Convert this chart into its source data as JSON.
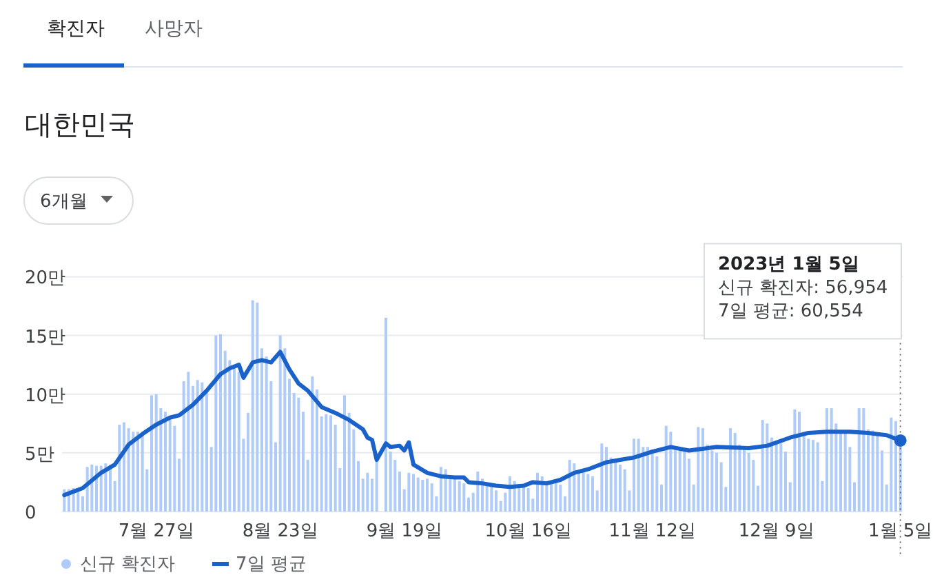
{
  "chart_data": {
    "type": "bar",
    "title": "대한민국",
    "x": [
      "2022-07-07",
      "2022-07-08",
      "2022-07-09",
      "2022-07-10",
      "2022-07-11",
      "2022-07-12",
      "2022-07-13",
      "2022-07-14",
      "2022-07-15",
      "2022-07-16",
      "2022-07-17",
      "2022-07-18",
      "2022-07-19",
      "2022-07-20",
      "2022-07-21",
      "2022-07-22",
      "2022-07-23",
      "2022-07-24",
      "2022-07-25",
      "2022-07-26",
      "2022-07-27",
      "2022-07-28",
      "2022-07-29",
      "2022-07-30",
      "2022-07-31",
      "2022-08-01",
      "2022-08-02",
      "2022-08-03",
      "2022-08-04",
      "2022-08-05",
      "2022-08-06",
      "2022-08-07",
      "2022-08-08",
      "2022-08-09",
      "2022-08-10",
      "2022-08-11",
      "2022-08-12",
      "2022-08-13",
      "2022-08-14",
      "2022-08-15",
      "2022-08-16",
      "2022-08-17",
      "2022-08-18",
      "2022-08-19",
      "2022-08-20",
      "2022-08-21",
      "2022-08-22",
      "2022-08-23",
      "2022-08-24",
      "2022-08-25",
      "2022-08-26",
      "2022-08-27",
      "2022-08-28",
      "2022-08-29",
      "2022-08-30",
      "2022-08-31",
      "2022-09-01",
      "2022-09-02",
      "2022-09-03",
      "2022-09-04",
      "2022-09-05",
      "2022-09-06",
      "2022-09-07",
      "2022-09-08",
      "2022-09-09",
      "2022-09-10",
      "2022-09-11",
      "2022-09-12",
      "2022-09-13",
      "2022-09-14",
      "2022-09-15",
      "2022-09-16",
      "2022-09-17",
      "2022-09-18",
      "2022-09-19",
      "2022-09-20",
      "2022-09-21",
      "2022-09-22",
      "2022-09-23",
      "2022-09-24",
      "2022-09-25",
      "2022-09-26",
      "2022-09-27",
      "2022-09-28",
      "2022-09-29",
      "2022-09-30",
      "2022-10-01",
      "2022-10-02",
      "2022-10-03",
      "2022-10-04",
      "2022-10-05",
      "2022-10-06",
      "2022-10-07",
      "2022-10-08",
      "2022-10-09",
      "2022-10-10",
      "2022-10-11",
      "2022-10-12",
      "2022-10-13",
      "2022-10-14",
      "2022-10-15",
      "2022-10-16",
      "2022-10-17",
      "2022-10-18",
      "2022-10-19",
      "2022-10-20",
      "2022-10-21",
      "2022-10-22",
      "2022-10-23",
      "2022-10-24",
      "2022-10-25",
      "2022-10-26",
      "2022-10-27",
      "2022-10-28",
      "2022-10-29",
      "2022-10-30",
      "2022-10-31",
      "2022-11-01",
      "2022-11-02",
      "2022-11-03",
      "2022-11-04",
      "2022-11-05",
      "2022-11-06",
      "2022-11-07",
      "2022-11-08",
      "2022-11-09",
      "2022-11-10",
      "2022-11-11",
      "2022-11-12",
      "2022-11-13",
      "2022-11-14",
      "2022-11-15",
      "2022-11-16",
      "2022-11-17",
      "2022-11-18",
      "2022-11-19",
      "2022-11-20",
      "2022-11-21",
      "2022-11-22",
      "2022-11-23",
      "2022-11-24",
      "2022-11-25",
      "2022-11-26",
      "2022-11-27",
      "2022-11-28",
      "2022-11-29",
      "2022-11-30",
      "2022-12-01",
      "2022-12-02",
      "2022-12-03",
      "2022-12-04",
      "2022-12-05",
      "2022-12-06",
      "2022-12-07",
      "2022-12-08",
      "2022-12-09",
      "2022-12-10",
      "2022-12-11",
      "2022-12-12",
      "2022-12-13",
      "2022-12-14",
      "2022-12-15",
      "2022-12-16",
      "2022-12-17",
      "2022-12-18",
      "2022-12-19",
      "2022-12-20",
      "2022-12-21",
      "2022-12-22",
      "2022-12-23",
      "2022-12-24",
      "2022-12-25",
      "2022-12-26",
      "2022-12-27",
      "2022-12-28",
      "2022-12-29",
      "2022-12-30",
      "2022-12-31",
      "2023-01-01",
      "2023-01-02",
      "2023-01-03",
      "2023-01-04",
      "2023-01-05"
    ],
    "series": [
      {
        "name": "신규 확진자",
        "color": "#aecbfa",
        "values": [
          1.9,
          1.9,
          2.0,
          1.8,
          1.3,
          3.8,
          4.0,
          3.9,
          3.9,
          4.1,
          4.0,
          2.6,
          7.4,
          7.6,
          7.1,
          6.8,
          6.8,
          6.6,
          3.6,
          9.9,
          10.0,
          8.8,
          8.5,
          7.8,
          7.3,
          4.5,
          11.1,
          11.9,
          10.7,
          11.2,
          11.0,
          10.4,
          5.5,
          15.0,
          15.1,
          13.7,
          12.9,
          12.5,
          11.9,
          6.2,
          8.4,
          18.0,
          17.8,
          13.9,
          13.2,
          11.1,
          5.9,
          15.0,
          13.9,
          11.3,
          10.1,
          9.7,
          8.5,
          4.4,
          11.5,
          10.4,
          8.1,
          8.3,
          8.2,
          7.4,
          3.7,
          9.9,
          8.4,
          7.0,
          4.3,
          2.8,
          3.3,
          2.8,
          4.3,
          0,
          16.5,
          5.1,
          4.4,
          3.4,
          1.9,
          3.3,
          3.2,
          2.9,
          2.7,
          2.8,
          2.4,
          1.3,
          3.8,
          3.6,
          2.9,
          2.8,
          2.6,
          2.4,
          1.2,
          1.6,
          3.4,
          2.8,
          2.3,
          2.2,
          1.8,
          0.9,
          1.6,
          3.0,
          2.6,
          2.3,
          2.3,
          2.0,
          1.1,
          3.3,
          3.0,
          2.6,
          2.5,
          2.5,
          2.3,
          1.3,
          4.4,
          4.1,
          3.5,
          3.4,
          3.2,
          3.0,
          1.8,
          5.8,
          5.5,
          4.6,
          4.4,
          4.0,
          3.6,
          1.8,
          6.2,
          6.2,
          5.5,
          5.5,
          5.3,
          4.7,
          2.3,
          7.3,
          6.8,
          5.5,
          5.2,
          5.1,
          4.5,
          2.3,
          7.2,
          7.1,
          5.7,
          5.2,
          5.0,
          4.2,
          2.1,
          7.1,
          6.7,
          5.7,
          5.3,
          5.0,
          4.4,
          2.2,
          7.8,
          7.5,
          6.3,
          5.9,
          5.8,
          5.1,
          2.5,
          8.7,
          8.5,
          6.6,
          6.2,
          6.1,
          5.9,
          2.6,
          8.8,
          8.8,
          7.5,
          6.8,
          6.8,
          5.5,
          2.5,
          8.8,
          8.8,
          7.0,
          6.9,
          6.6,
          5.2,
          2.3,
          8.0,
          7.7,
          5.6954
        ]
      },
      {
        "name": "7일 평균",
        "type": "line",
        "color": "#1a62c9",
        "x": [
          "2022-07-07",
          "2022-07-11",
          "2022-07-15",
          "2022-07-18",
          "2022-07-21",
          "2022-07-24",
          "2022-07-27",
          "2022-07-30",
          "2022-08-01",
          "2022-08-04",
          "2022-08-07",
          "2022-08-10",
          "2022-08-12",
          "2022-08-14",
          "2022-08-15",
          "2022-08-17",
          "2022-08-19",
          "2022-08-21",
          "2022-08-23",
          "2022-08-25",
          "2022-08-27",
          "2022-08-29",
          "2022-09-01",
          "2022-09-04",
          "2022-09-07",
          "2022-09-10",
          "2022-09-11",
          "2022-09-12",
          "2022-09-13",
          "2022-09-15",
          "2022-09-16",
          "2022-09-18",
          "2022-09-19",
          "2022-09-20",
          "2022-09-21",
          "2022-09-24",
          "2022-09-27",
          "2022-09-30",
          "2022-10-02",
          "2022-10-03",
          "2022-10-06",
          "2022-10-09",
          "2022-10-12",
          "2022-10-15",
          "2022-10-17",
          "2022-10-20",
          "2022-10-23",
          "2022-10-26",
          "2022-10-29",
          "2022-11-02",
          "2022-11-05",
          "2022-11-08",
          "2022-11-12",
          "2022-11-16",
          "2022-11-20",
          "2022-11-26",
          "2022-12-03",
          "2022-12-07",
          "2022-12-12",
          "2022-12-16",
          "2022-12-20",
          "2022-12-25",
          "2022-12-29",
          "2023-01-02",
          "2023-01-05"
        ],
        "values": [
          1.4,
          2.0,
          3.3,
          4.0,
          5.7,
          6.6,
          7.4,
          8.0,
          8.2,
          9.1,
          10.3,
          11.7,
          12.2,
          12.5,
          11.4,
          12.7,
          12.9,
          12.7,
          13.6,
          12.1,
          10.9,
          10.3,
          8.9,
          8.4,
          7.8,
          7.0,
          6.3,
          6.1,
          4.4,
          5.8,
          5.5,
          5.6,
          5.2,
          5.9,
          4.0,
          3.3,
          3.0,
          2.9,
          2.9,
          2.5,
          2.4,
          2.2,
          2.1,
          2.2,
          2.5,
          2.4,
          2.7,
          3.3,
          3.6,
          4.2,
          4.4,
          4.6,
          5.1,
          5.5,
          5.2,
          5.5,
          5.4,
          5.6,
          6.3,
          6.7,
          6.8,
          6.8,
          6.7,
          6.5,
          6.0554
        ]
      }
    ],
    "xlim": [
      "2022-07-06T12:00",
      "2023-01-05T12:00"
    ],
    "xticks": [
      {
        "value": "2022-07-27",
        "label": "7월 27일"
      },
      {
        "value": "2022-08-23",
        "label": "8월 23일"
      },
      {
        "value": "2022-09-19",
        "label": "9월 19일"
      },
      {
        "value": "2022-10-16",
        "label": "10월 16일"
      },
      {
        "value": "2022-11-12",
        "label": "11월 12일"
      },
      {
        "value": "2022-12-09",
        "label": "12월 9일"
      },
      {
        "value": "2023-01-05",
        "label": "1월 5일"
      }
    ],
    "ylim": [
      0,
      20
    ],
    "yticks": [
      0,
      {
        "value": 5,
        "label": "5만"
      },
      {
        "value": 10,
        "label": "10만"
      },
      {
        "value": 15,
        "label": "15만"
      },
      {
        "value": 20,
        "label": "20만"
      }
    ],
    "grid": "y",
    "legend": "bottom left",
    "ref_lines": [
      {
        "axis": "x",
        "value": "2023-01-05",
        "color": "#5f6368",
        "line_style": "dotted"
      }
    ],
    "annotations": [
      "확진자",
      "사망자",
      "6개월",
      "2023년 1월 5일\n신규 확진자: 56,954\n7일 평균: 60,554"
    ]
  }
}
